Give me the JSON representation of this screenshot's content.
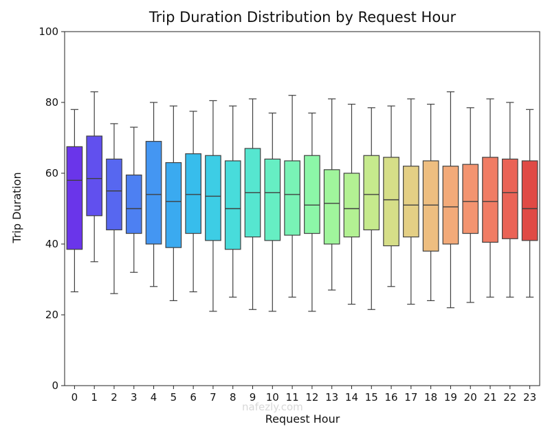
{
  "chart_data": {
    "type": "box",
    "title": "Trip Duration Distribution by Request Hour",
    "xlabel": "Request Hour",
    "ylabel": "Trip Duration",
    "ylim": [
      0,
      100
    ],
    "yticks": [
      0,
      20,
      40,
      60,
      80,
      100
    ],
    "grid": false,
    "legend": "none",
    "categories": [
      "0",
      "1",
      "2",
      "3",
      "4",
      "5",
      "6",
      "7",
      "8",
      "9",
      "10",
      "11",
      "12",
      "13",
      "14",
      "15",
      "16",
      "17",
      "18",
      "19",
      "20",
      "21",
      "22",
      "23"
    ],
    "boxes": [
      {
        "whislo": 26.5,
        "q1": 38.5,
        "med": 58,
        "q3": 67.5,
        "whishi": 78,
        "color": "#6a35ea"
      },
      {
        "whislo": 35,
        "q1": 48,
        "med": 58.5,
        "q3": 70.5,
        "whishi": 83,
        "color": "#6150ee"
      },
      {
        "whislo": 26,
        "q1": 44,
        "med": 55,
        "q3": 64,
        "whishi": 74,
        "color": "#5767f0"
      },
      {
        "whislo": 32,
        "q1": 43,
        "med": 50,
        "q3": 59.5,
        "whishi": 73,
        "color": "#4d80f2"
      },
      {
        "whislo": 28,
        "q1": 40,
        "med": 54,
        "q3": 69,
        "whishi": 80,
        "color": "#4496f2"
      },
      {
        "whislo": 24,
        "q1": 39,
        "med": 52,
        "q3": 63,
        "whishi": 79,
        "color": "#3aaaf0"
      },
      {
        "whislo": 26.5,
        "q1": 43,
        "med": 54,
        "q3": 65.5,
        "whishi": 77.5,
        "color": "#37bdec"
      },
      {
        "whislo": 21,
        "q1": 41,
        "med": 53.5,
        "q3": 65,
        "whishi": 80.5,
        "color": "#3dcde5"
      },
      {
        "whislo": 25,
        "q1": 38.5,
        "med": 50,
        "q3": 63.5,
        "whishi": 79,
        "color": "#48dcdb"
      },
      {
        "whislo": 21.5,
        "q1": 42,
        "med": 54.5,
        "q3": 67,
        "whishi": 81,
        "color": "#56e6d0"
      },
      {
        "whislo": 21,
        "q1": 41,
        "med": 54.5,
        "q3": 64,
        "whishi": 77,
        "color": "#66eec3"
      },
      {
        "whislo": 25,
        "q1": 42.5,
        "med": 54,
        "q3": 63.5,
        "whishi": 82,
        "color": "#79f3b6"
      },
      {
        "whislo": 21,
        "q1": 43,
        "med": 51,
        "q3": 65,
        "whishi": 77,
        "color": "#8cf6a8"
      },
      {
        "whislo": 27,
        "q1": 40,
        "med": 51.5,
        "q3": 61,
        "whishi": 81,
        "color": "#a0f59c"
      },
      {
        "whislo": 23,
        "q1": 42,
        "med": 50,
        "q3": 60,
        "whishi": 79.5,
        "color": "#b3f193"
      },
      {
        "whislo": 21.5,
        "q1": 44,
        "med": 54,
        "q3": 65,
        "whishi": 78.5,
        "color": "#c6ea8d"
      },
      {
        "whislo": 28,
        "q1": 39.5,
        "med": 52.5,
        "q3": 64.5,
        "whishi": 79,
        "color": "#d6de88"
      },
      {
        "whislo": 23,
        "q1": 42,
        "med": 51,
        "q3": 62,
        "whishi": 81,
        "color": "#e4cf85"
      },
      {
        "whislo": 24,
        "q1": 38,
        "med": 51,
        "q3": 63.5,
        "whishi": 79.5,
        "color": "#eebe80"
      },
      {
        "whislo": 22,
        "q1": 40,
        "med": 50.5,
        "q3": 62,
        "whishi": 83,
        "color": "#f3aa79"
      },
      {
        "whislo": 23.5,
        "q1": 43,
        "med": 52,
        "q3": 62.5,
        "whishi": 78.5,
        "color": "#f39470"
      },
      {
        "whislo": 25,
        "q1": 40.5,
        "med": 52,
        "q3": 64.5,
        "whishi": 81,
        "color": "#f07c64"
      },
      {
        "whislo": 25,
        "q1": 41.5,
        "med": 54.5,
        "q3": 64,
        "whishi": 80,
        "color": "#ea6356"
      },
      {
        "whislo": 25,
        "q1": 41,
        "med": 50,
        "q3": 63.5,
        "whishi": 78,
        "color": "#e04a45"
      }
    ]
  },
  "watermark": "nafezly.com"
}
